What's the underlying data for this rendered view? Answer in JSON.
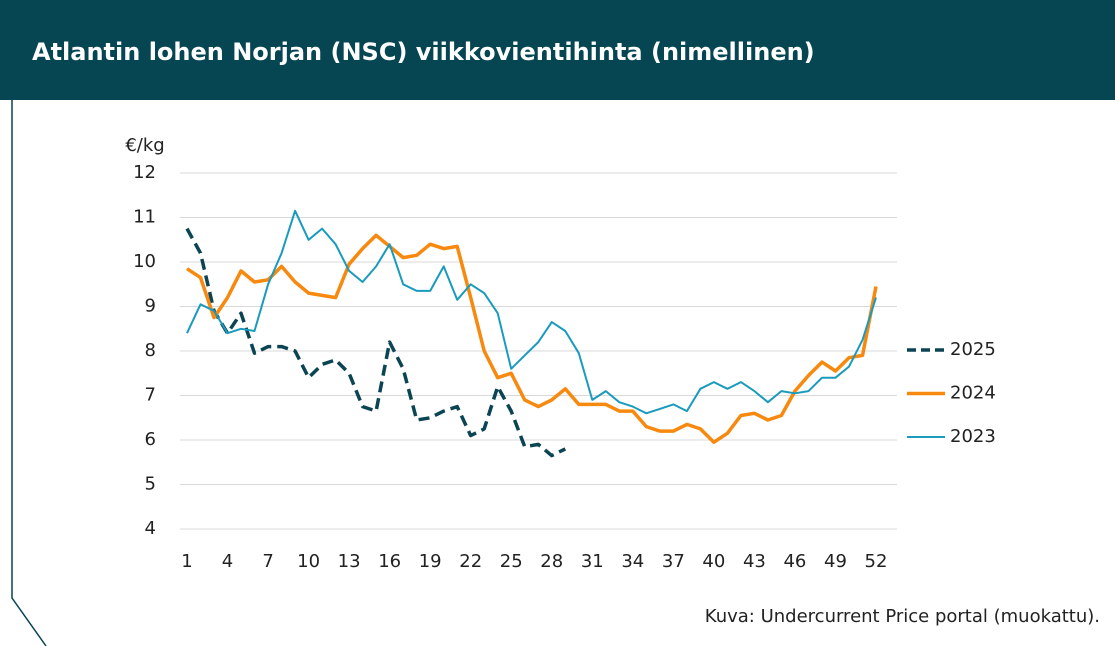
{
  "header": {
    "title": "Atlantin lohen Norjan (NSC) viikkovientihinta (nimellinen)"
  },
  "chart_data": {
    "type": "line",
    "y_label": "€/kg",
    "x": [
      1,
      2,
      3,
      4,
      5,
      6,
      7,
      8,
      9,
      10,
      11,
      12,
      13,
      14,
      15,
      16,
      17,
      18,
      19,
      20,
      21,
      22,
      23,
      24,
      25,
      26,
      27,
      28,
      29,
      30,
      31,
      32,
      33,
      34,
      35,
      36,
      37,
      38,
      39,
      40,
      41,
      42,
      43,
      44,
      45,
      46,
      47,
      48,
      49,
      50,
      51,
      52
    ],
    "xlim": [
      1,
      52
    ],
    "xticks": [
      1,
      4,
      7,
      10,
      13,
      16,
      19,
      22,
      25,
      28,
      31,
      34,
      37,
      40,
      43,
      46,
      49,
      52
    ],
    "ylim": [
      4,
      12
    ],
    "yticks": [
      4,
      5,
      6,
      7,
      8,
      9,
      10,
      11,
      12
    ],
    "grid": true,
    "legend": "right",
    "series": [
      {
        "name": "2025",
        "color": "#0b4452",
        "dashed": true,
        "values": [
          10.75,
          10.2,
          8.9,
          8.4,
          8.85,
          7.95,
          8.1,
          8.1,
          8.0,
          7.4,
          7.7,
          7.8,
          7.5,
          6.75,
          6.65,
          8.2,
          7.6,
          6.45,
          6.5,
          6.65,
          6.75,
          6.1,
          6.25,
          7.2,
          6.65,
          5.85,
          5.9,
          5.65,
          5.8,
          null,
          null,
          null,
          null,
          null,
          null,
          null,
          null,
          null,
          null,
          null,
          null,
          null,
          null,
          null,
          null,
          null,
          null,
          null,
          null,
          null,
          null,
          null
        ]
      },
      {
        "name": "2024",
        "color": "#f7890f",
        "dashed": false,
        "values": [
          9.85,
          9.65,
          8.75,
          9.2,
          9.8,
          9.55,
          9.6,
          9.9,
          9.55,
          9.3,
          9.25,
          9.2,
          9.95,
          10.3,
          10.6,
          10.35,
          10.1,
          10.15,
          10.4,
          10.3,
          10.35,
          9.2,
          8.0,
          7.4,
          7.5,
          6.9,
          6.75,
          6.9,
          7.15,
          6.8,
          6.8,
          6.8,
          6.65,
          6.65,
          6.3,
          6.2,
          6.2,
          6.35,
          6.25,
          5.95,
          6.15,
          6.55,
          6.6,
          6.45,
          6.55,
          7.1,
          7.45,
          7.75,
          7.55,
          7.85,
          7.9,
          9.45
        ]
      },
      {
        "name": "2023",
        "color": "#1a9bbd",
        "dashed": false,
        "values": [
          8.4,
          9.05,
          8.9,
          8.4,
          8.5,
          8.45,
          9.5,
          10.2,
          11.15,
          10.5,
          10.75,
          10.4,
          9.8,
          9.55,
          9.9,
          10.4,
          9.5,
          9.35,
          9.35,
          9.9,
          9.15,
          9.5,
          9.3,
          8.85,
          7.6,
          7.9,
          8.2,
          8.65,
          8.45,
          7.95,
          6.9,
          7.1,
          6.85,
          6.75,
          6.6,
          6.7,
          6.8,
          6.65,
          7.15,
          7.3,
          7.15,
          7.3,
          7.1,
          6.85,
          7.1,
          7.05,
          7.1,
          7.4,
          7.4,
          7.65,
          8.25,
          9.2
        ]
      }
    ]
  },
  "caption": "Kuva: Undercurrent Price portal (muokattu)."
}
